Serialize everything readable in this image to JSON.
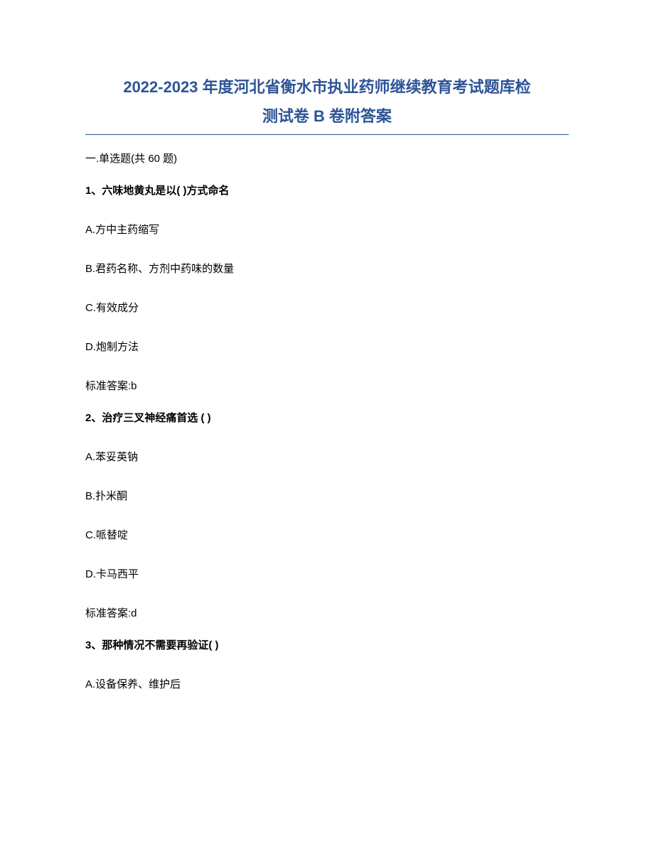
{
  "document": {
    "title_line1": "2022-2023 年度河北省衡水市执业药师继续教育考试题库检",
    "title_line2": "测试卷 B 卷附答案",
    "title_color": "#2e5496",
    "divider_color": "#2e5496",
    "background_color": "#ffffff",
    "text_color": "#000000",
    "title_fontsize": 22,
    "body_fontsize": 15
  },
  "section": {
    "header": "一.单选题(共 60 题)"
  },
  "questions": [
    {
      "prompt": "1、六味地黄丸是以( )方式命名",
      "options": [
        "A.方中主药缩写",
        "B.君药名称、方剂中药味的数量",
        "C.有效成分",
        "D.炮制方法"
      ],
      "answer": "标准答案:b"
    },
    {
      "prompt": "2、治疗三叉神经痛首选 ( )",
      "options": [
        "A.苯妥英钠",
        "B.扑米酮",
        "C.哌替啶",
        "D.卡马西平"
      ],
      "answer": "标准答案:d"
    },
    {
      "prompt": "3、那种情况不需要再验证( )",
      "options": [
        "A.设备保养、维护后"
      ],
      "answer": ""
    }
  ]
}
